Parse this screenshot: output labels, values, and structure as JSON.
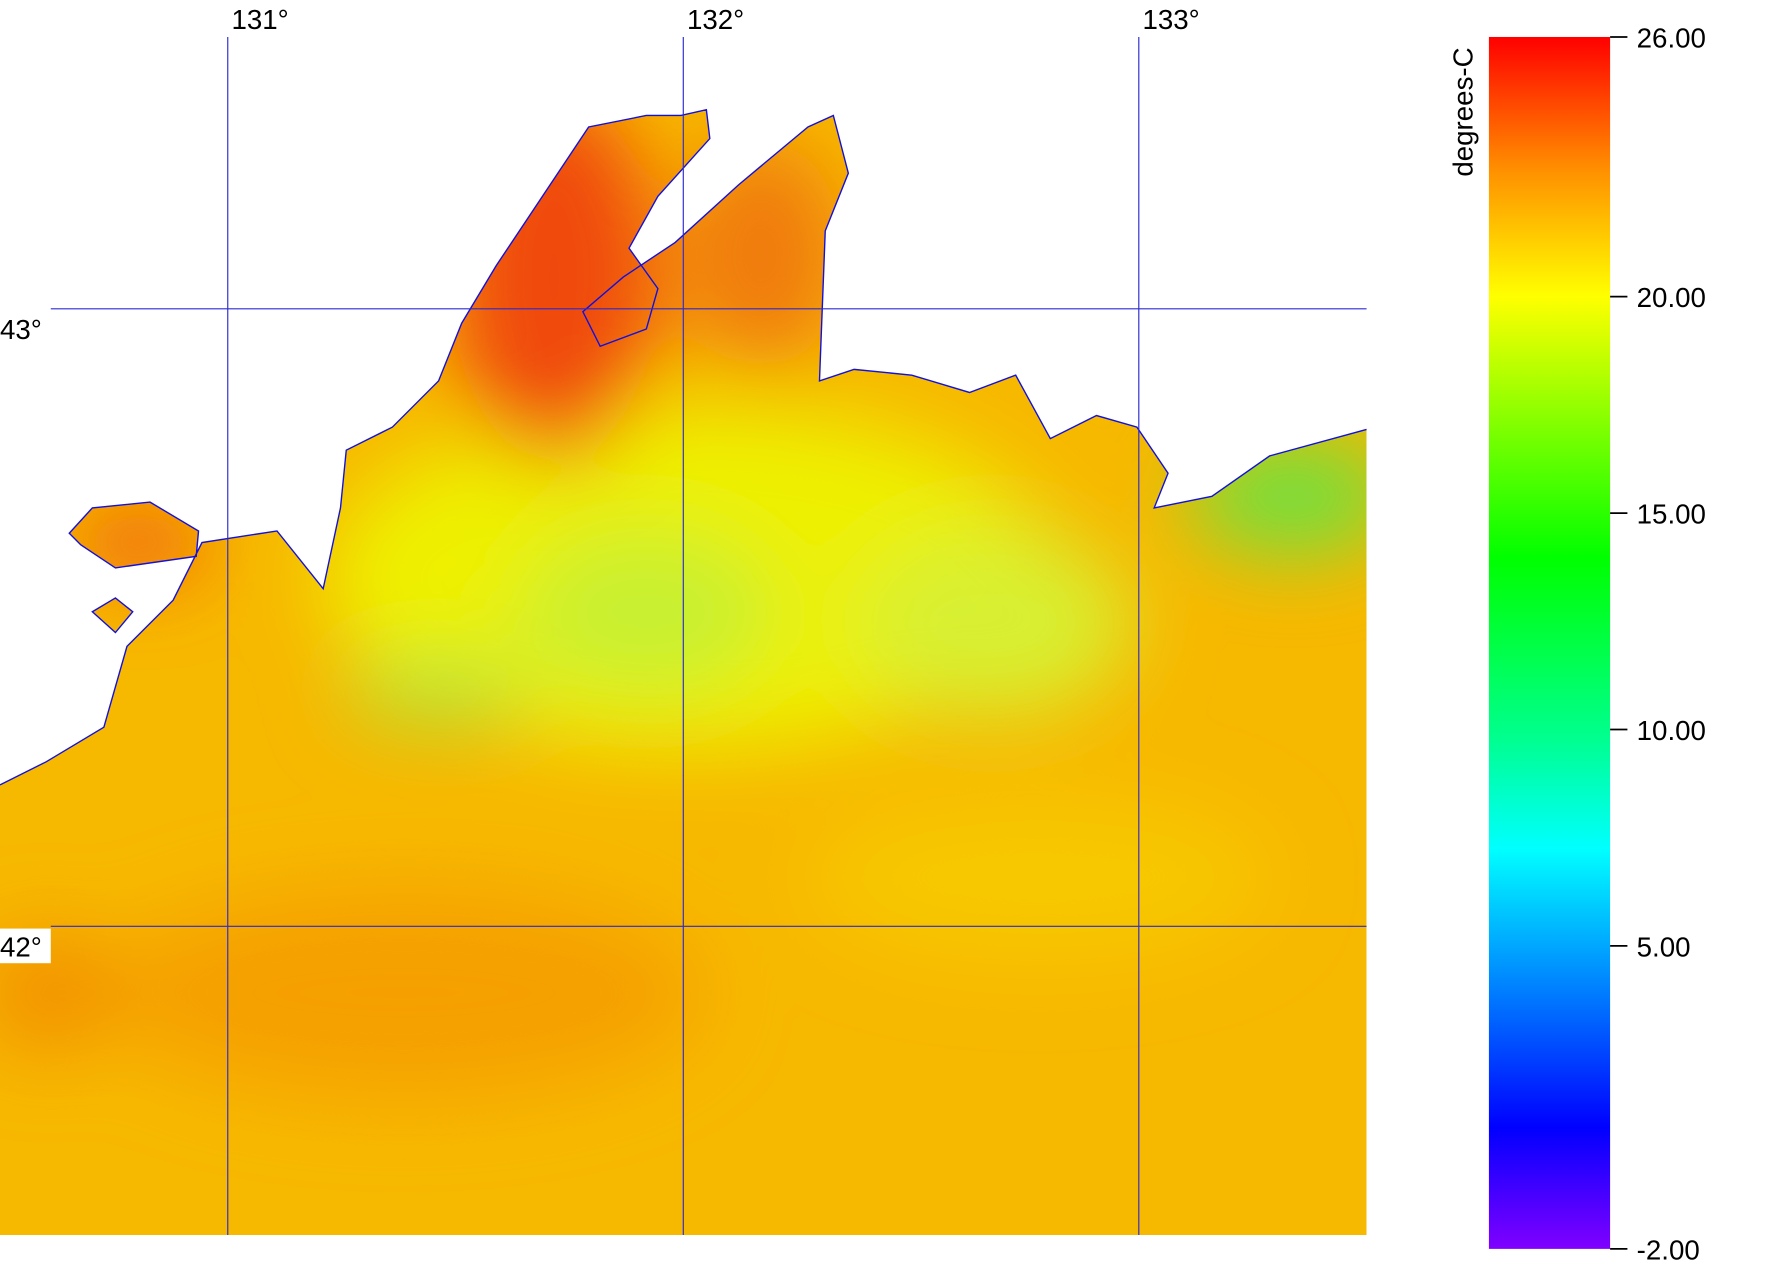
{
  "map": {
    "xlim": [
      130.5,
      133.5
    ],
    "ylim": [
      41.5,
      43.5
    ],
    "lon_ticks": [
      {
        "value": 131,
        "label": "131°"
      },
      {
        "value": 132,
        "label": "132°"
      },
      {
        "value": 133,
        "label": "133°"
      }
    ],
    "lat_ticks": [
      {
        "value": 43,
        "label": "43°"
      },
      {
        "value": 42,
        "label": "42°"
      }
    ],
    "grid_color": "#2b2bd0"
  },
  "colorbar": {
    "label": "degrees-C",
    "range": [
      -2,
      26
    ],
    "ticks": [
      {
        "value": 26,
        "label": "26.00"
      },
      {
        "value": 20,
        "label": "20.00"
      },
      {
        "value": 15,
        "label": "15.00"
      },
      {
        "value": 10,
        "label": "10.00"
      },
      {
        "value": 5,
        "label": "5.00"
      },
      {
        "value": -2,
        "label": "-2.00"
      }
    ]
  }
}
